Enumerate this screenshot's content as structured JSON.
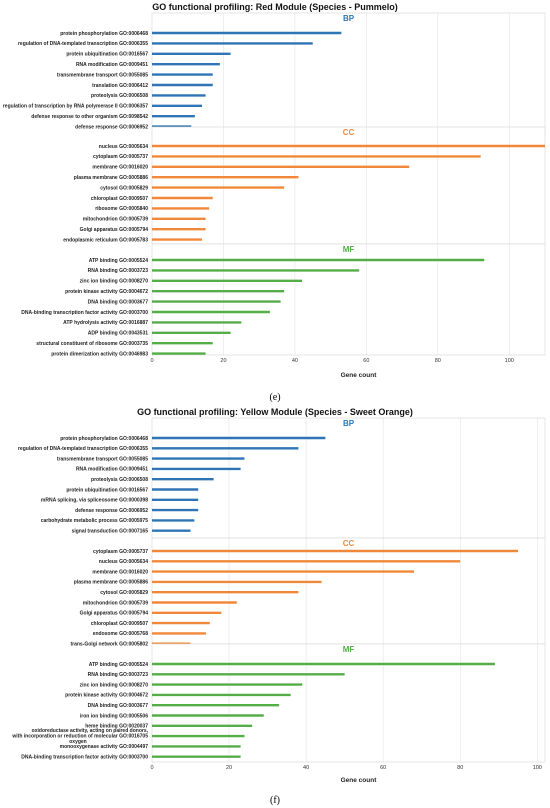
{
  "colors": {
    "BP": "#2f75b5",
    "CC": "#f0883a",
    "MF": "#55ad48"
  },
  "chart_data": [
    {
      "type": "bar",
      "orientation": "horizontal",
      "title": "GO functional profiling: Red Module (Species - Pummelo)",
      "caption": "(e)",
      "xlabel": "Gene count",
      "xlim": [
        0,
        110
      ],
      "xticks": [
        0,
        20,
        40,
        60,
        80,
        100
      ],
      "grid": true,
      "sections": [
        {
          "name": "BP",
          "categories": [
            "protein phosphorylation GO:0006468",
            "regulation of DNA-templated transcription GO:0006355",
            "protein ubiquitination GO:0016567",
            "RNA modification GO:0009451",
            "transmembrane transport GO:0055085",
            "translation GO:0006412",
            "proteolysis GO:0006508",
            "regulation of transcription by RNA polymerase II GO:0006357",
            "defense response to other organism GO:0098542",
            "defense response GO:0006952"
          ],
          "values": [
            53,
            45,
            22,
            19,
            17,
            17,
            15,
            14,
            12,
            11
          ]
        },
        {
          "name": "CC",
          "categories": [
            "nucleus GO:0005634",
            "cytoplasm GO:0005737",
            "membrane GO:0016020",
            "plasma membrane GO:0005886",
            "cytosol GO:0005829",
            "chloroplast GO:0009507",
            "ribosome GO:0005840",
            "mitochondrion GO:0005739",
            "Golgi apparatus GO:0005794",
            "endoplasmic reticulum GO:0005783"
          ],
          "values": [
            110,
            92,
            72,
            41,
            37,
            17,
            16,
            15,
            15,
            14
          ]
        },
        {
          "name": "MF",
          "categories": [
            "ATP binding GO:0005524",
            "RNA binding GO:0003723",
            "zinc ion binding GO:0008270",
            "protein kinase activity GO:0004672",
            "DNA binding GO:0003677",
            "DNA-binding transcription factor activity GO:0003700",
            "ATP hydrolysis activity GO:0016887",
            "ADP binding GO:0043531",
            "structural constituent of ribosome GO:0003735",
            "protein dimerization activity GO:0046983"
          ],
          "values": [
            93,
            58,
            42,
            37,
            36,
            33,
            25,
            22,
            17,
            15
          ]
        }
      ]
    },
    {
      "type": "bar",
      "orientation": "horizontal",
      "title": "GO functional profiling: Yellow Module (Species - Sweet Orange)",
      "caption": "(f)",
      "xlabel": "Gene count",
      "xlim": [
        0,
        102
      ],
      "xticks": [
        0,
        20,
        40,
        60,
        80,
        100
      ],
      "grid": true,
      "sections": [
        {
          "name": "BP",
          "categories": [
            "protein phosphorylation GO:0006468",
            "regulation of DNA-templated transcription GO:0006355",
            "transmembrane transport GO:0055085",
            "RNA modification GO:0009451",
            "proteolysis GO:0006508",
            "protein ubiquitination GO:0016567",
            "mRNA splicing, via spliceosome GO:0000398",
            "defense response GO:0006952",
            "carbohydrate metabolic process GO:0005975",
            "signal transduction GO:0007165"
          ],
          "values": [
            45,
            38,
            24,
            23,
            16,
            12,
            12,
            12,
            11,
            10
          ]
        },
        {
          "name": "CC",
          "categories": [
            "cytoplasm GO:0005737",
            "nucleus GO:0005634",
            "membrane GO:0016020",
            "plasma membrane GO:0005886",
            "cytosol GO:0005829",
            "mitochondrion GO:0005739",
            "Golgi apparatus GO:0005794",
            "chloroplast GO:0009507",
            "endosome GO:0005768",
            "trans-Golgi network GO:0005802"
          ],
          "values": [
            95,
            80,
            68,
            44,
            38,
            22,
            18,
            15,
            14,
            10
          ]
        },
        {
          "name": "MF",
          "categories": [
            "ATP binding GO:0005524",
            "RNA binding GO:0003723",
            "zinc ion binding GO:0008270",
            "protein kinase activity GO:0004672",
            "DNA binding GO:0003677",
            "iron ion binding GO:0005506",
            "heme binding GO:0020037",
            "oxidoreductase activity, acting on paired donors, with incorporation or reduction of molecular GO:0016705 oxygen",
            "monooxygenase activity GO:0004497",
            "DNA-binding transcription factor activity GO:0003700"
          ],
          "values": [
            89,
            50,
            39,
            36,
            33,
            29,
            26,
            24,
            23,
            23
          ]
        }
      ]
    }
  ]
}
